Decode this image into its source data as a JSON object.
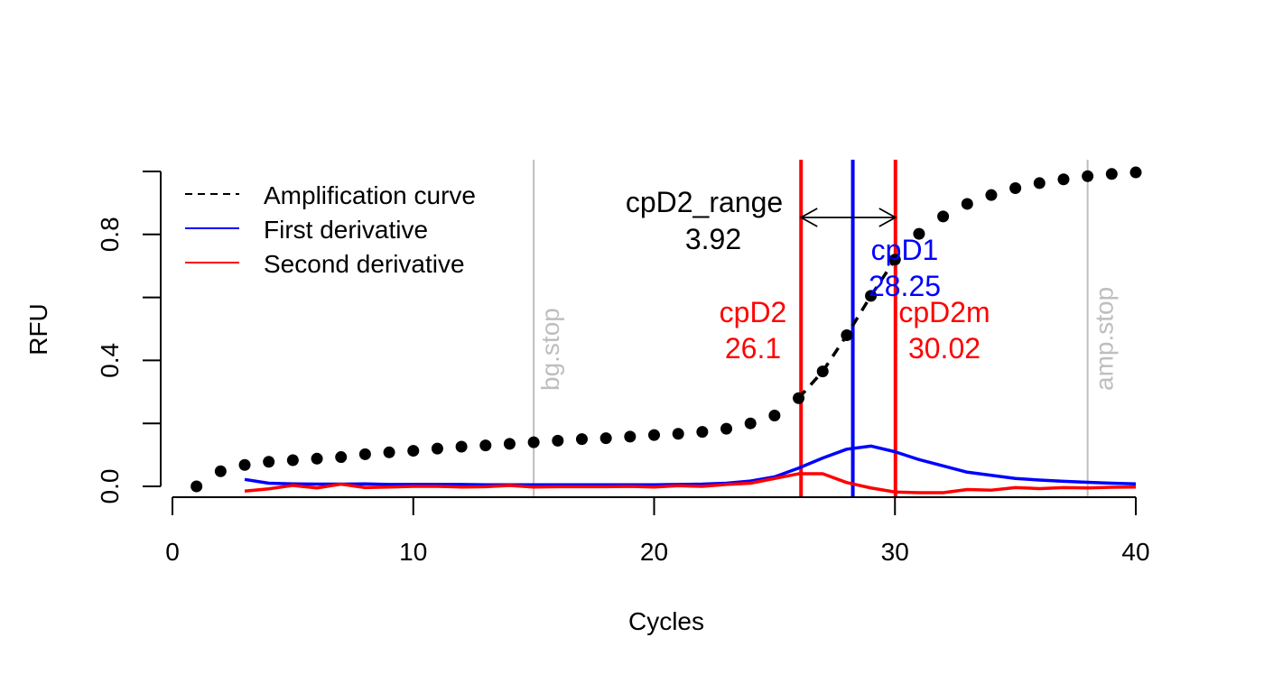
{
  "chart_data": {
    "type": "line",
    "xlabel": "Cycles",
    "ylabel": "RFU",
    "xlim": [
      0,
      40
    ],
    "ylim": [
      0,
      1
    ],
    "x_ticks": [
      0,
      10,
      20,
      30,
      40
    ],
    "x_tick_labels": [
      "0",
      "10",
      "20",
      "30",
      "40"
    ],
    "y_ticks": [
      0,
      0.2,
      0.4,
      0.6,
      0.8,
      1.0
    ],
    "y_tick_labels": [
      "0.0",
      "",
      "0.4",
      "",
      "0.8",
      ""
    ],
    "grid": false,
    "legend_position": "top-left",
    "legend": [
      {
        "label": "Amplification curve",
        "color": "#000000",
        "style": "dashed"
      },
      {
        "label": "First derivative",
        "color": "#0000FF",
        "style": "solid"
      },
      {
        "label": "Second derivative",
        "color": "#FF0000",
        "style": "solid"
      }
    ],
    "amplification": {
      "x": [
        1,
        2,
        3,
        4,
        5,
        6,
        7,
        8,
        9,
        10,
        11,
        12,
        13,
        14,
        15,
        16,
        17,
        18,
        19,
        20,
        21,
        22,
        23,
        24,
        25,
        26,
        27,
        28,
        29,
        30,
        31,
        32,
        33,
        34,
        35,
        36,
        37,
        38,
        39,
        40
      ],
      "y": [
        0.0,
        0.048,
        0.068,
        0.078,
        0.083,
        0.088,
        0.093,
        0.102,
        0.108,
        0.113,
        0.12,
        0.126,
        0.13,
        0.135,
        0.14,
        0.145,
        0.15,
        0.153,
        0.158,
        0.163,
        0.167,
        0.173,
        0.183,
        0.2,
        0.225,
        0.28,
        0.365,
        0.48,
        0.605,
        0.72,
        0.802,
        0.857,
        0.897,
        0.925,
        0.947,
        0.963,
        0.975,
        0.985,
        0.992,
        0.997
      ],
      "dashed_from": 26,
      "dashed_to": 30,
      "color": "#000000"
    },
    "first_derivative": {
      "x": [
        3,
        4,
        5,
        6,
        7,
        8,
        9,
        10,
        11,
        12,
        13,
        14,
        15,
        16,
        17,
        18,
        19,
        20,
        21,
        22,
        23,
        24,
        25,
        26,
        27,
        28,
        29,
        30,
        31,
        32,
        33,
        34,
        35,
        36,
        37,
        38,
        39,
        40
      ],
      "y": [
        0.022,
        0.01,
        0.008,
        0.007,
        0.007,
        0.008,
        0.006,
        0.006,
        0.006,
        0.006,
        0.005,
        0.005,
        0.005,
        0.005,
        0.005,
        0.005,
        0.005,
        0.005,
        0.006,
        0.007,
        0.01,
        0.017,
        0.03,
        0.058,
        0.09,
        0.118,
        0.128,
        0.11,
        0.085,
        0.065,
        0.045,
        0.035,
        0.025,
        0.02,
        0.016,
        0.013,
        0.01,
        0.008
      ],
      "color": "#0000FF"
    },
    "second_derivative": {
      "x": [
        3,
        4,
        5,
        6,
        7,
        8,
        9,
        10,
        11,
        12,
        13,
        14,
        15,
        16,
        17,
        18,
        19,
        20,
        21,
        22,
        23,
        24,
        25,
        26,
        27,
        28,
        29,
        30,
        31,
        32,
        33,
        34,
        35,
        36,
        37,
        38,
        39,
        40
      ],
      "y": [
        -0.015,
        -0.008,
        0.003,
        -0.005,
        0.007,
        -0.004,
        -0.002,
        0.0,
        0.0,
        -0.002,
        -0.001,
        0.003,
        -0.002,
        -0.001,
        -0.001,
        -0.001,
        0.0,
        -0.002,
        0.002,
        0.0,
        0.006,
        0.01,
        0.025,
        0.04,
        0.04,
        0.012,
        -0.005,
        -0.018,
        -0.02,
        -0.02,
        -0.01,
        -0.012,
        -0.004,
        -0.007,
        -0.004,
        -0.005,
        -0.003,
        -0.002
      ],
      "color": "#FF0000"
    },
    "vertical_lines": [
      {
        "x": 15,
        "color": "#BEBEBE",
        "label": "bg.stop"
      },
      {
        "x": 38,
        "color": "#BEBEBE",
        "label": "amp.stop"
      },
      {
        "x": 26.1,
        "color": "#FF0000"
      },
      {
        "x": 28.25,
        "color": "#0000FF"
      },
      {
        "x": 30.02,
        "color": "#FF0000"
      }
    ],
    "markers": [
      {
        "name": "cpD2",
        "value": "26.1",
        "color": "#FF0000"
      },
      {
        "name": "cpD1",
        "value": "28.25",
        "color": "#0000FF"
      },
      {
        "name": "cpD2m",
        "value": "30.02",
        "color": "#FF0000"
      }
    ],
    "range": {
      "label": "cpD2_range",
      "value": "3.92",
      "from": 26.1,
      "to": 30.02
    }
  }
}
